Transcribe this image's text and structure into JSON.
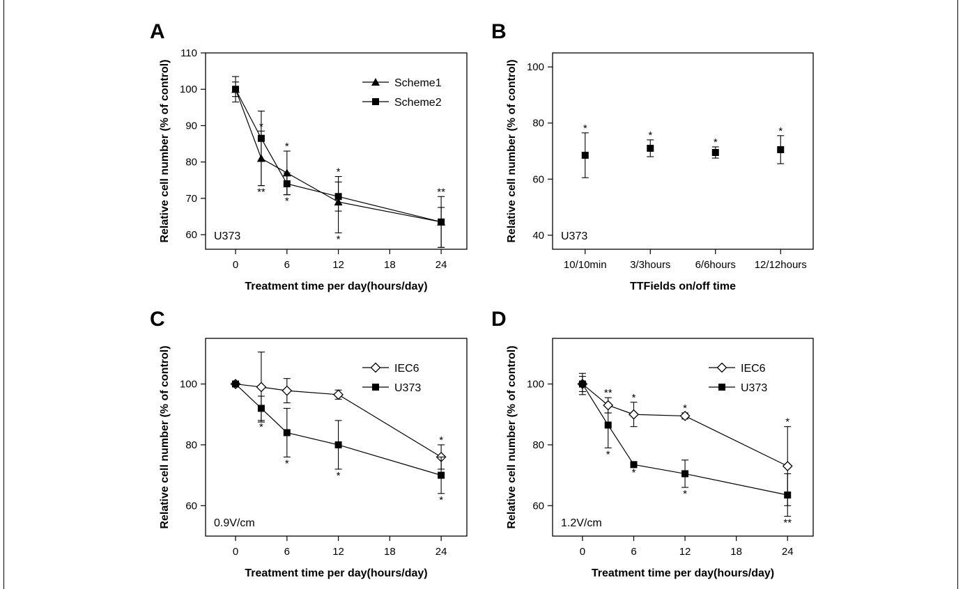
{
  "chart_data": [
    {
      "panel": "A",
      "type": "line",
      "xlabel": "Treatment time per day(hours/day)",
      "ylabel": "Relative cell number (% of control)",
      "x_ticks": [
        0,
        6,
        12,
        18,
        24
      ],
      "y_ticks": [
        60,
        70,
        80,
        90,
        100,
        110
      ],
      "xlim": [
        -3.5,
        27
      ],
      "ylim": [
        56,
        110
      ],
      "cell_label": "U373",
      "legend_position": "top-right",
      "series": [
        {
          "name": "Scheme1",
          "marker": "triangle",
          "x": [
            0,
            3,
            6,
            12,
            24
          ],
          "y": [
            100,
            81,
            77,
            69,
            63.5
          ],
          "err_upper": [
            3.5,
            7.5,
            6,
            7,
            7
          ],
          "err_lower": [
            3.5,
            7.5,
            6,
            8.5,
            7
          ],
          "sig_above": [
            "",
            "*",
            "*",
            "*",
            "**"
          ],
          "sig_below": [
            "",
            "",
            "",
            "*",
            ""
          ]
        },
        {
          "name": "Scheme2",
          "marker": "square",
          "x": [
            0,
            3,
            6,
            12,
            24
          ],
          "y": [
            100,
            86.5,
            74,
            70.5,
            63.5
          ],
          "err_upper": [
            2,
            7.5,
            3,
            4,
            4
          ],
          "err_lower": [
            2,
            13,
            3,
            4,
            7
          ],
          "sig_above": [
            "",
            "",
            "",
            "",
            ""
          ],
          "sig_below": [
            "",
            "**",
            "*",
            "",
            ""
          ]
        }
      ]
    },
    {
      "panel": "B",
      "type": "scatter",
      "xlabel": "TTFields on/off time",
      "ylabel": "Relative cell number (% of control)",
      "categories": [
        "10/10min",
        "3/3hours",
        "6/6hours",
        "12/12hours"
      ],
      "y_ticks": [
        40,
        60,
        80,
        100
      ],
      "ylim": [
        35,
        105
      ],
      "cell_label": "U373",
      "series": [
        {
          "marker": "square",
          "y": [
            68.5,
            71,
            69.5,
            70.5
          ],
          "err_upper": [
            8,
            3,
            2,
            5
          ],
          "err_lower": [
            8,
            3,
            2,
            5
          ],
          "sig_above": [
            "*",
            "*",
            "*",
            "*"
          ],
          "sig_below": [
            "",
            "",
            "",
            ""
          ]
        }
      ]
    },
    {
      "panel": "C",
      "type": "line",
      "xlabel": "Treatment time per day(hours/day)",
      "ylabel": "Relative cell number (% of control)",
      "x_ticks": [
        0,
        6,
        12,
        18,
        24
      ],
      "y_ticks": [
        60,
        80,
        100
      ],
      "xlim": [
        -3.5,
        27
      ],
      "ylim": [
        50,
        115
      ],
      "cell_label": "0.9V/cm",
      "legend_position": "top-right",
      "series": [
        {
          "name": "IEC6",
          "marker": "diamond-open",
          "x": [
            0,
            3,
            6,
            12,
            24
          ],
          "y": [
            100,
            99,
            97.8,
            96.5,
            76
          ],
          "err_upper": [
            0,
            11.5,
            4,
            1.5,
            4
          ],
          "err_lower": [
            0,
            11.5,
            4,
            1.5,
            4
          ],
          "sig_above": [
            "",
            "",
            "",
            "",
            "*"
          ],
          "sig_below": [
            "",
            "",
            "",
            "",
            ""
          ]
        },
        {
          "name": "U373",
          "marker": "square",
          "x": [
            0,
            3,
            6,
            12,
            24
          ],
          "y": [
            100,
            92,
            84,
            80,
            70
          ],
          "err_upper": [
            0,
            4,
            8,
            8,
            6
          ],
          "err_lower": [
            0,
            4,
            8,
            8,
            6
          ],
          "sig_above": [
            "",
            "",
            "",
            "",
            ""
          ],
          "sig_below": [
            "",
            "*",
            "*",
            "*",
            "*"
          ]
        }
      ]
    },
    {
      "panel": "D",
      "type": "line",
      "xlabel": "Treatment time per day(hours/day)",
      "ylabel": "Relative cell number (% of control)",
      "x_ticks": [
        0,
        6,
        12,
        18,
        24
      ],
      "y_ticks": [
        60,
        80,
        100
      ],
      "xlim": [
        -3.5,
        27
      ],
      "ylim": [
        50,
        115
      ],
      "cell_label": "1.2V/cm",
      "legend_position": "top-right",
      "series": [
        {
          "name": "IEC6",
          "marker": "diamond-open",
          "x": [
            0,
            3,
            6,
            12,
            24
          ],
          "y": [
            100,
            93,
            90,
            89.5,
            73
          ],
          "err_upper": [
            3.5,
            2.5,
            4,
            1,
            13
          ],
          "err_lower": [
            3.5,
            2.5,
            4,
            1,
            13
          ],
          "sig_above": [
            "",
            "**",
            "*",
            "*",
            "*"
          ],
          "sig_below": [
            "",
            "",
            "",
            "",
            ""
          ]
        },
        {
          "name": "U373",
          "marker": "square",
          "x": [
            0,
            3,
            6,
            12,
            24
          ],
          "y": [
            100,
            86.5,
            73.5,
            70.5,
            63.5
          ],
          "err_upper": [
            2.5,
            4,
            0.5,
            4.5,
            7
          ],
          "err_lower": [
            2.5,
            7.5,
            0.5,
            4.5,
            7
          ],
          "sig_above": [
            "",
            "",
            "",
            "",
            ""
          ],
          "sig_below": [
            "",
            "*",
            "*",
            "*",
            "**"
          ]
        }
      ]
    }
  ]
}
